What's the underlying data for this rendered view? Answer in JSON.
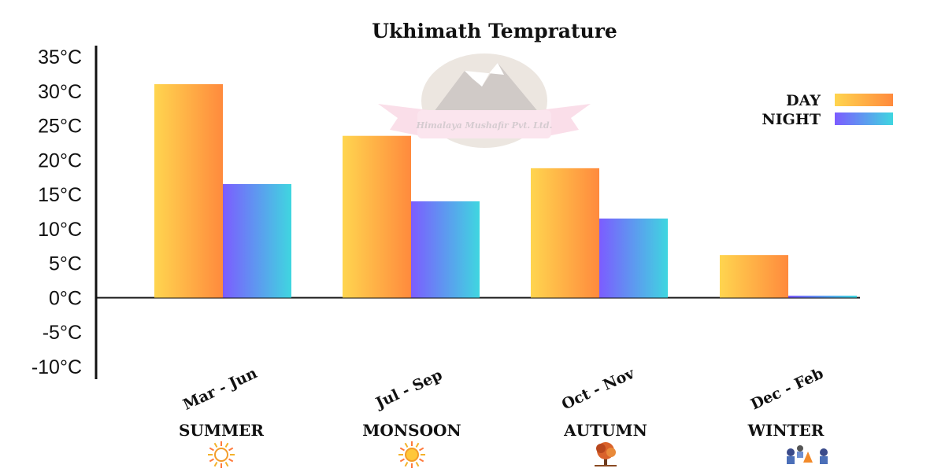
{
  "chart_data": {
    "type": "bar",
    "title": "Ukhimath Temprature",
    "xlabel": "",
    "ylabel": "",
    "ylim": [
      -10,
      35
    ],
    "y_ticks": [
      "35°C",
      "30°C",
      "25°C",
      "20°C",
      "15°C",
      "10°C",
      "5°C",
      "0°C",
      "-5°C",
      "-10°C"
    ],
    "y_tick_values": [
      35,
      30,
      25,
      20,
      15,
      10,
      5,
      0,
      -5,
      -10
    ],
    "categories": [
      "Mar - Jun",
      "Jul - Sep",
      "Oct - Nov",
      "Dec - Feb"
    ],
    "seasons": [
      "SUMMER",
      "MONSOON",
      "AUTUMN",
      "WINTER"
    ],
    "season_icons": [
      "sun-icon",
      "sun-icon",
      "autumn-tree-icon",
      "campfire-icon"
    ],
    "series": [
      {
        "name": "DAY",
        "values": [
          31,
          23.5,
          18.8,
          6.2
        ],
        "colors": [
          "#ffd54f",
          "#ff8a3d"
        ]
      },
      {
        "name": "NIGHT",
        "values": [
          16.5,
          14,
          11.5,
          0.3
        ],
        "colors": [
          "#7c5cff",
          "#3fd6e0"
        ]
      }
    ],
    "legend_position": "top-right",
    "grid": false,
    "watermark_text": "Himalaya Mushafir Pvt. Ltd."
  }
}
